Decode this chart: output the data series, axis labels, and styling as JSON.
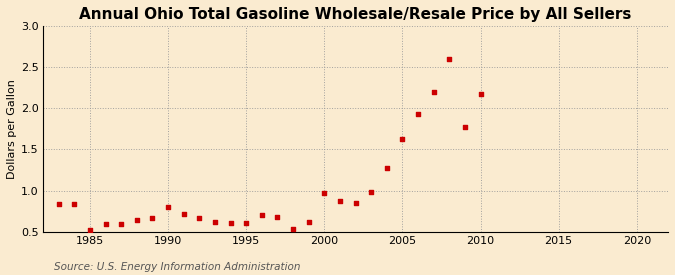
{
  "years": [
    1983,
    1984,
    1985,
    1986,
    1987,
    1988,
    1989,
    1990,
    1991,
    1992,
    1993,
    1994,
    1995,
    1996,
    1997,
    1998,
    1999,
    2000,
    2001,
    2002,
    2003,
    2004,
    2005,
    2006,
    2007,
    2008,
    2009,
    2010
  ],
  "values": [
    0.84,
    0.84,
    0.52,
    0.6,
    0.59,
    0.65,
    0.67,
    0.8,
    0.72,
    0.67,
    0.62,
    0.61,
    0.61,
    0.7,
    0.68,
    0.54,
    0.62,
    0.97,
    0.88,
    0.85,
    0.98,
    1.27,
    1.63,
    1.93,
    2.2,
    2.6,
    1.77,
    2.17
  ],
  "title": "Annual Ohio Total Gasoline Wholesale/Resale Price by All Sellers",
  "ylabel": "Dollars per Gallon",
  "source": "Source: U.S. Energy Information Administration",
  "xlim": [
    1982,
    2022
  ],
  "ylim": [
    0.5,
    3.0
  ],
  "xticks": [
    1985,
    1990,
    1995,
    2000,
    2005,
    2010,
    2015,
    2020
  ],
  "yticks": [
    0.5,
    1.0,
    1.5,
    2.0,
    2.5,
    3.0
  ],
  "marker_color": "#cc0000",
  "bg_color": "#faebd0",
  "grid_color": "#999999",
  "title_fontsize": 11,
  "label_fontsize": 8,
  "tick_fontsize": 8,
  "source_fontsize": 7.5
}
